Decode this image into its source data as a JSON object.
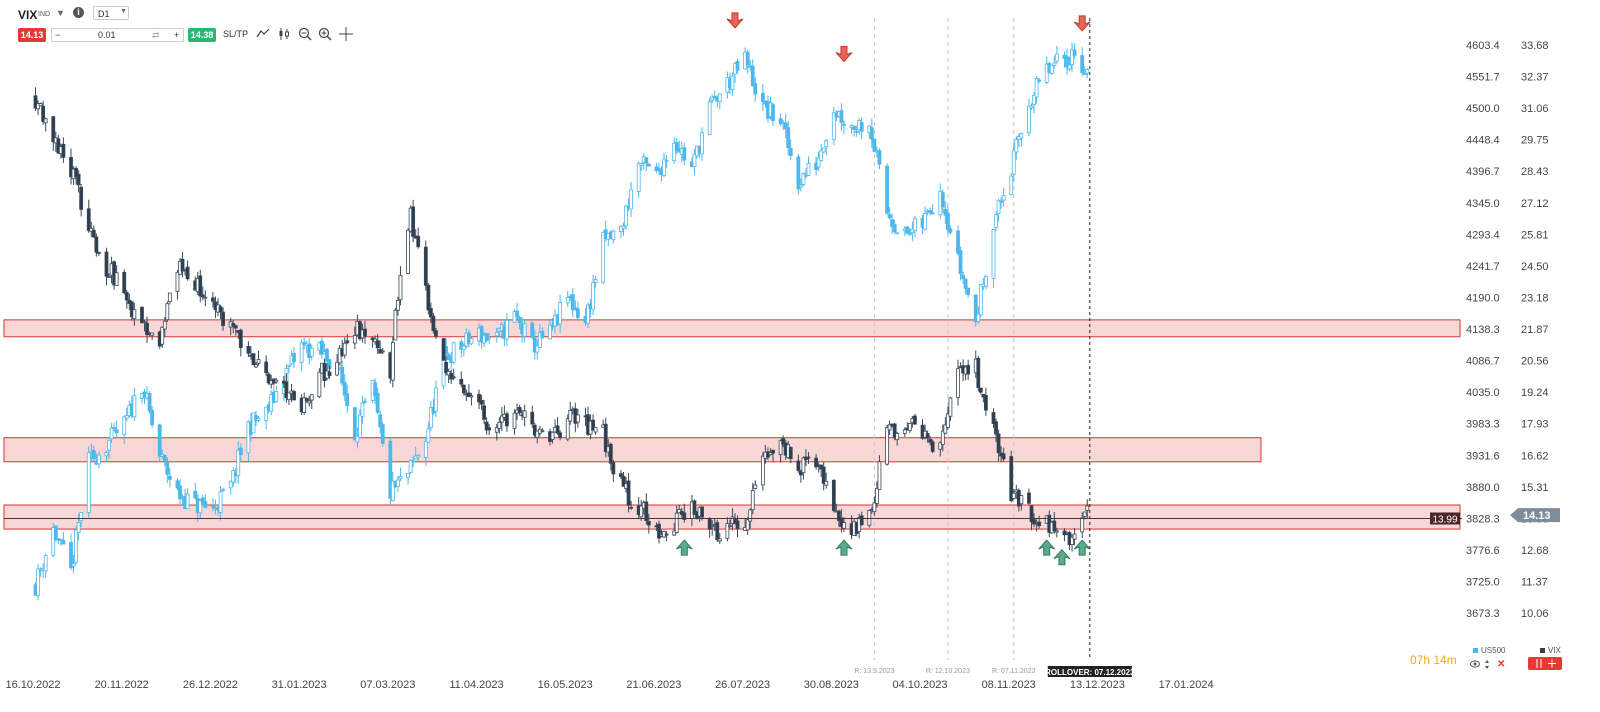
{
  "toolbar": {
    "symbol": "VIX",
    "symbol_sub": "IND",
    "timeframe": "D1",
    "sell_price": "14.13",
    "quantity": "0.01",
    "buy_price": "14.38",
    "sltp_label": "SL/TP",
    "icons": [
      "line-chart-icon",
      "candle-type-icon",
      "zoom-out-icon",
      "zoom-in-icon",
      "crosshair-icon"
    ]
  },
  "colors": {
    "vix_up": "#ffffff",
    "vix_down": "#2c3e50",
    "us500": "#4db8ec",
    "zone_fill": "#f8d0d0",
    "zone_stroke": "#d9534f",
    "sell_arrow": "#e8645a",
    "buy_arrow": "#5fa88a"
  },
  "countdown": "07h 14m",
  "legend": [
    {
      "label": "US500",
      "color": "#4db8ec"
    },
    {
      "label": "VIX",
      "color": "#2c3e50"
    }
  ],
  "chart_data": {
    "type": "candlestick-overlay",
    "left_axis_label": "",
    "y_left_ticks": [
      "4603.4",
      "4551.7",
      "4500.0",
      "4448.4",
      "4396.7",
      "4345.0",
      "4293.4",
      "4241.7",
      "4190.0",
      "4138.3",
      "4086.7",
      "4035.0",
      "3983.3",
      "3931.6",
      "3880.0",
      "3828.3",
      "3776.6",
      "3725.0",
      "3673.3"
    ],
    "y_right_ticks": [
      "33.68",
      "32.37",
      "31.06",
      "29.75",
      "28.43",
      "27.12",
      "25.81",
      "24.50",
      "23.18",
      "21.87",
      "20.56",
      "19.24",
      "17.93",
      "16.62",
      "15.31",
      "13.99",
      "12.68",
      "11.37",
      "10.06"
    ],
    "y_left_range": [
      3673.3,
      4603.4
    ],
    "y_right_range": [
      10.06,
      33.68
    ],
    "x_ticks": [
      "16.10.2022",
      "20.11.2022",
      "26.12.2022",
      "31.01.2023",
      "07.03.2023",
      "11.04.2023",
      "16.05.2023",
      "21.06.2023",
      "26.07.2023",
      "30.08.2023",
      "04.10.2023",
      "08.11.2023",
      "13.12.2023",
      "17.01.2024"
    ],
    "x_range": [
      "2022-10-16",
      "2024-01-17"
    ],
    "zones_vix": [
      {
        "from": 21.55,
        "to": 22.25
      },
      {
        "from": 16.35,
        "to": 17.35
      },
      {
        "from": 13.55,
        "to": 14.55
      }
    ],
    "zones_note": "",
    "current_price_line": {
      "value": 13.99,
      "label": "13.99"
    },
    "last_price": {
      "value": 14.13,
      "label": "14.13"
    },
    "vertical_markers": [
      {
        "date": "2023-09-13",
        "label": "R: 13.9.2023"
      },
      {
        "date": "2023-10-12",
        "label": "R: 12.10.2023"
      },
      {
        "date": "2023-11-07",
        "label": "R: 07.11.2023"
      },
      {
        "date": "2023-12-07",
        "label": "ROLLOVER: 07.12.2023",
        "style": "rollover"
      }
    ],
    "sell_arrows": [
      {
        "date": "2023-07-20",
        "us500": 4620
      },
      {
        "date": "2023-09-01",
        "us500": 4565
      },
      {
        "date": "2023-12-04",
        "us500": 4615
      }
    ],
    "buy_arrows": [
      {
        "date": "2023-06-30",
        "vix": 13.3
      },
      {
        "date": "2023-09-01",
        "vix": 13.3
      },
      {
        "date": "2023-11-20",
        "vix": 13.3
      },
      {
        "date": "2023-11-26",
        "vix": 12.9
      },
      {
        "date": "2023-12-04",
        "vix": 13.3
      }
    ],
    "series": [
      {
        "name": "VIX",
        "interval": "D1",
        "close_anchors": [
          [
            "2022-10-17",
            31.5
          ],
          [
            "2022-10-24",
            30.0
          ],
          [
            "2022-10-31",
            28.5
          ],
          [
            "2022-11-07",
            26.2
          ],
          [
            "2022-11-14",
            24.5
          ],
          [
            "2022-11-21",
            23.3
          ],
          [
            "2022-11-28",
            22.0
          ],
          [
            "2022-12-05",
            21.5
          ],
          [
            "2022-12-12",
            24.5
          ],
          [
            "2022-12-19",
            23.8
          ],
          [
            "2022-12-26",
            22.6
          ],
          [
            "2023-01-02",
            22.0
          ],
          [
            "2023-01-09",
            20.8
          ],
          [
            "2023-01-16",
            20.0
          ],
          [
            "2023-01-23",
            19.5
          ],
          [
            "2023-01-30",
            18.7
          ],
          [
            "2023-02-06",
            20.0
          ],
          [
            "2023-02-13",
            20.5
          ],
          [
            "2023-02-20",
            22.0
          ],
          [
            "2023-02-27",
            21.2
          ],
          [
            "2023-03-06",
            20.1
          ],
          [
            "2023-03-10",
            24.5
          ],
          [
            "2023-03-14",
            26.5
          ],
          [
            "2023-03-20",
            23.5
          ],
          [
            "2023-03-27",
            20.5
          ],
          [
            "2023-04-03",
            19.5
          ],
          [
            "2023-04-10",
            18.5
          ],
          [
            "2023-04-17",
            17.5
          ],
          [
            "2023-04-24",
            18.8
          ],
          [
            "2023-05-01",
            18.0
          ],
          [
            "2023-05-08",
            17.0
          ],
          [
            "2023-05-15",
            18.3
          ],
          [
            "2023-05-22",
            17.8
          ],
          [
            "2023-05-29",
            17.5
          ],
          [
            "2023-06-05",
            15.3
          ],
          [
            "2023-06-12",
            14.5
          ],
          [
            "2023-06-19",
            13.5
          ],
          [
            "2023-06-26",
            13.8
          ],
          [
            "2023-07-03",
            14.5
          ],
          [
            "2023-07-10",
            13.4
          ],
          [
            "2023-07-17",
            13.6
          ],
          [
            "2023-07-24",
            13.8
          ],
          [
            "2023-07-31",
            16.5
          ],
          [
            "2023-08-07",
            17.2
          ],
          [
            "2023-08-14",
            16.0
          ],
          [
            "2023-08-21",
            16.5
          ],
          [
            "2023-08-28",
            14.5
          ],
          [
            "2023-09-04",
            13.4
          ],
          [
            "2023-09-11",
            14.0
          ],
          [
            "2023-09-18",
            17.5
          ],
          [
            "2023-09-25",
            18.0
          ],
          [
            "2023-10-02",
            17.5
          ],
          [
            "2023-10-09",
            17.0
          ],
          [
            "2023-10-16",
            19.8
          ],
          [
            "2023-10-23",
            20.2
          ],
          [
            "2023-10-30",
            17.8
          ],
          [
            "2023-11-06",
            15.0
          ],
          [
            "2023-11-13",
            14.2
          ],
          [
            "2023-11-20",
            13.7
          ],
          [
            "2023-11-27",
            13.3
          ],
          [
            "2023-12-01",
            13.1
          ],
          [
            "2023-12-06",
            14.13
          ]
        ]
      },
      {
        "name": "US500",
        "interval": "D1",
        "close_anchors": [
          [
            "2022-10-17",
            3720
          ],
          [
            "2022-10-24",
            3810
          ],
          [
            "2022-10-31",
            3740
          ],
          [
            "2022-11-07",
            3920
          ],
          [
            "2022-11-14",
            3950
          ],
          [
            "2022-11-21",
            3980
          ],
          [
            "2022-11-28",
            4050
          ],
          [
            "2022-12-05",
            3930
          ],
          [
            "2022-12-12",
            3870
          ],
          [
            "2022-12-19",
            3850
          ],
          [
            "2022-12-26",
            3845
          ],
          [
            "2023-01-02",
            3880
          ],
          [
            "2023-01-09",
            3980
          ],
          [
            "2023-01-16",
            4000
          ],
          [
            "2023-01-23",
            4060
          ],
          [
            "2023-01-30",
            4110
          ],
          [
            "2023-02-06",
            4100
          ],
          [
            "2023-02-13",
            4080
          ],
          [
            "2023-02-20",
            3970
          ],
          [
            "2023-02-27",
            4040
          ],
          [
            "2023-03-06",
            3870
          ],
          [
            "2023-03-13",
            3900
          ],
          [
            "2023-03-20",
            3960
          ],
          [
            "2023-03-27",
            4090
          ],
          [
            "2023-04-03",
            4110
          ],
          [
            "2023-04-10",
            4130
          ],
          [
            "2023-04-17",
            4120
          ],
          [
            "2023-04-24",
            4160
          ],
          [
            "2023-05-01",
            4110
          ],
          [
            "2023-05-08",
            4130
          ],
          [
            "2023-05-15",
            4190
          ],
          [
            "2023-05-22",
            4150
          ],
          [
            "2023-05-29",
            4280
          ],
          [
            "2023-06-05",
            4300
          ],
          [
            "2023-06-12",
            4410
          ],
          [
            "2023-06-19",
            4390
          ],
          [
            "2023-06-26",
            4450
          ],
          [
            "2023-07-03",
            4400
          ],
          [
            "2023-07-10",
            4500
          ],
          [
            "2023-07-17",
            4540
          ],
          [
            "2023-07-24",
            4580
          ],
          [
            "2023-07-31",
            4500
          ],
          [
            "2023-08-07",
            4480
          ],
          [
            "2023-08-14",
            4380
          ],
          [
            "2023-08-21",
            4410
          ],
          [
            "2023-08-28",
            4500
          ],
          [
            "2023-09-04",
            4470
          ],
          [
            "2023-09-11",
            4480
          ],
          [
            "2023-09-18",
            4330
          ],
          [
            "2023-09-25",
            4290
          ],
          [
            "2023-10-02",
            4310
          ],
          [
            "2023-10-09",
            4370
          ],
          [
            "2023-10-16",
            4250
          ],
          [
            "2023-10-23",
            4150
          ],
          [
            "2023-10-30",
            4310
          ],
          [
            "2023-11-06",
            4400
          ],
          [
            "2023-11-13",
            4510
          ],
          [
            "2023-11-20",
            4560
          ],
          [
            "2023-11-27",
            4580
          ],
          [
            "2023-12-01",
            4590
          ],
          [
            "2023-12-06",
            4560
          ]
        ]
      }
    ]
  }
}
